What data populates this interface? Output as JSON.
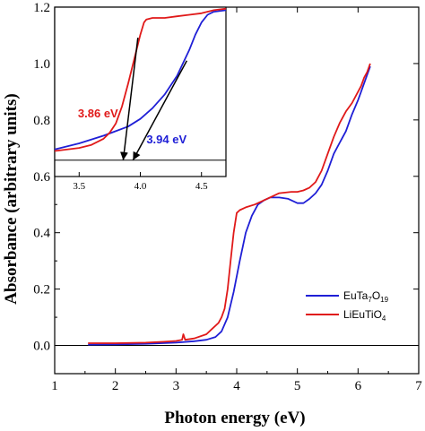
{
  "chart_data": {
    "type": "line",
    "xlabel": "Photon energy (eV)",
    "ylabel": "Absorbance (arbitrary units)",
    "xlim": [
      1,
      7
    ],
    "ylim": [
      -0.1,
      1.2
    ],
    "xticks": [
      1,
      2,
      3,
      4,
      5,
      6,
      7
    ],
    "yticks": [
      0.0,
      0.2,
      0.4,
      0.6,
      0.8,
      1.0,
      1.2
    ],
    "zero_line": true,
    "legend_position": "lower-right",
    "series": [
      {
        "label_main": "EuTa",
        "label_sub1": "7",
        "label_mid": "O",
        "label_sub2": "19",
        "color": "#1f1fd6",
        "x": [
          1.55,
          2.0,
          2.5,
          3.0,
          3.3,
          3.5,
          3.65,
          3.75,
          3.85,
          3.95,
          4.05,
          4.15,
          4.25,
          4.35,
          4.45,
          4.55,
          4.7,
          4.85,
          5.0,
          5.1,
          5.2,
          5.3,
          5.4,
          5.5,
          5.6,
          5.7,
          5.8,
          5.9,
          6.0,
          6.05,
          6.1,
          6.15,
          6.2
        ],
        "y": [
          0.003,
          0.004,
          0.006,
          0.01,
          0.015,
          0.02,
          0.03,
          0.05,
          0.1,
          0.19,
          0.3,
          0.4,
          0.46,
          0.5,
          0.515,
          0.525,
          0.525,
          0.52,
          0.505,
          0.505,
          0.52,
          0.54,
          0.57,
          0.62,
          0.68,
          0.72,
          0.76,
          0.82,
          0.87,
          0.9,
          0.93,
          0.96,
          0.99
        ]
      },
      {
        "label_main": "LiEuTiO",
        "label_sub1": "4",
        "label_mid": "",
        "label_sub2": "",
        "color": "#e01919",
        "x": [
          1.55,
          2.0,
          2.5,
          2.8,
          3.0,
          3.1,
          3.12,
          3.15,
          3.3,
          3.5,
          3.6,
          3.7,
          3.75,
          3.8,
          3.85,
          3.9,
          3.95,
          4.0,
          4.05,
          4.15,
          4.3,
          4.5,
          4.7,
          4.9,
          5.0,
          5.1,
          5.2,
          5.3,
          5.4,
          5.5,
          5.6,
          5.7,
          5.8,
          5.9,
          6.0,
          6.05,
          6.1,
          6.15,
          6.2
        ],
        "y": [
          0.008,
          0.008,
          0.01,
          0.013,
          0.016,
          0.02,
          0.04,
          0.02,
          0.025,
          0.04,
          0.06,
          0.08,
          0.1,
          0.13,
          0.2,
          0.3,
          0.4,
          0.47,
          0.48,
          0.49,
          0.5,
          0.52,
          0.54,
          0.545,
          0.545,
          0.55,
          0.56,
          0.58,
          0.62,
          0.68,
          0.74,
          0.79,
          0.83,
          0.86,
          0.9,
          0.92,
          0.95,
          0.97,
          1.0
        ]
      }
    ],
    "inset": {
      "xlim": [
        3.3,
        4.7
      ],
      "ylim": [
        -0.06,
        1.0
      ],
      "xticks": [
        3.5,
        4.0,
        4.5
      ],
      "baseline_y": 0.0,
      "blue": {
        "x": [
          3.3,
          3.5,
          3.7,
          3.9,
          4.0,
          4.1,
          4.2,
          4.3,
          4.4,
          4.45,
          4.5,
          4.55,
          4.6,
          4.7
        ],
        "y": [
          0.07,
          0.11,
          0.16,
          0.22,
          0.27,
          0.34,
          0.43,
          0.55,
          0.72,
          0.82,
          0.9,
          0.95,
          0.97,
          0.98
        ]
      },
      "red": {
        "x": [
          3.3,
          3.5,
          3.6,
          3.7,
          3.75,
          3.8,
          3.85,
          3.9,
          3.95,
          4.0,
          4.03,
          4.05,
          4.1,
          4.2,
          4.3,
          4.4,
          4.5,
          4.6,
          4.7
        ],
        "y": [
          0.06,
          0.08,
          0.1,
          0.14,
          0.18,
          0.24,
          0.35,
          0.5,
          0.66,
          0.82,
          0.9,
          0.92,
          0.93,
          0.93,
          0.94,
          0.95,
          0.96,
          0.98,
          0.99
        ]
      },
      "red_tangent": {
        "x1": 3.86,
        "y1": 0.0,
        "x2": 3.98,
        "y2": 0.8
      },
      "blue_tangent": {
        "x1": 3.94,
        "y1": 0.0,
        "x2": 4.38,
        "y2": 0.65
      },
      "annotations": [
        {
          "text": "3.86 eV",
          "color": "#e01919",
          "x": 3.49,
          "y": 0.28
        },
        {
          "text": "3.94 eV",
          "color": "#1f1fd6",
          "x": 4.05,
          "y": 0.11
        }
      ]
    }
  }
}
